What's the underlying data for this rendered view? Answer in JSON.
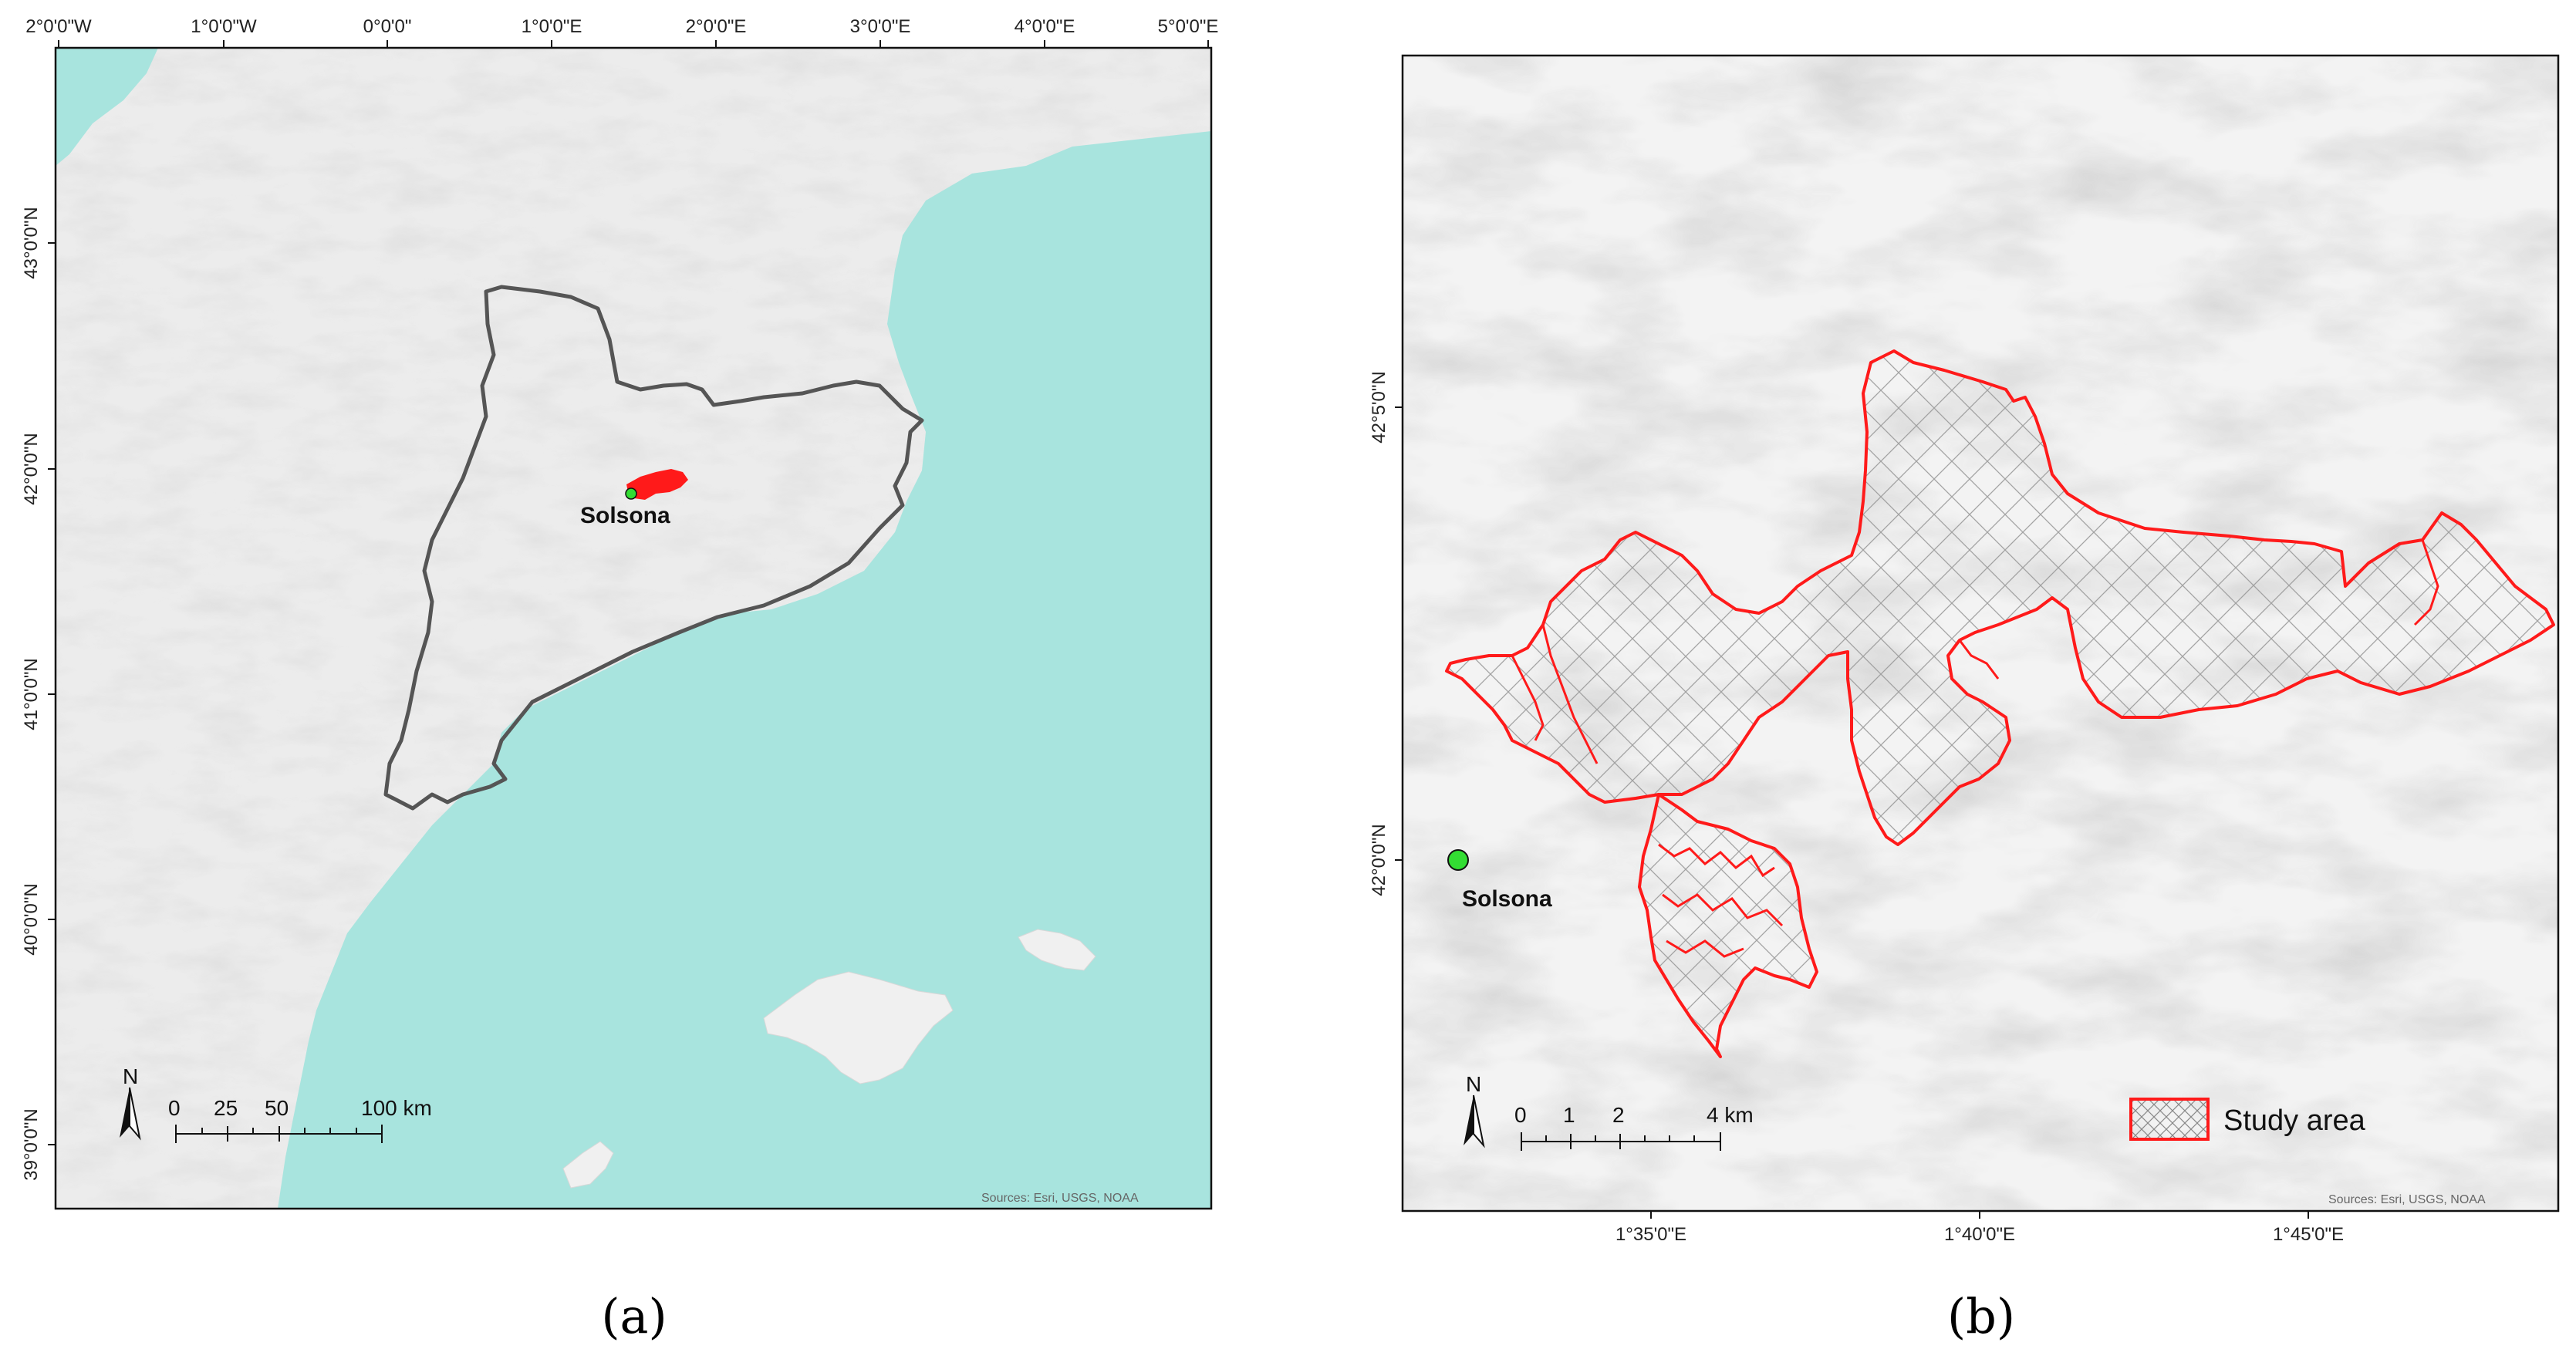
{
  "panel_a": {
    "top_ticks": [
      "2°0'0\"W",
      "1°0'0\"W",
      "0°0'0\"",
      "1°0'0\"E",
      "2°0'0\"E",
      "3°0'0\"E",
      "4°0'0\"E",
      "5°0'0\"E"
    ],
    "left_ticks": [
      "43°0'0\"N",
      "42°0'0\"N",
      "41°0'0\"N",
      "40°0'0\"N",
      "39°0'0\"N"
    ],
    "city_label": "Solsona",
    "north_label": "N",
    "scale_labels": [
      "0",
      "25",
      "50",
      "100 km"
    ],
    "sources": "Sources: Esri, USGS, NOAA",
    "caption": "(a)",
    "colors": {
      "sea": "#a8e4de",
      "land": "#ececec",
      "region_outline": "#555555",
      "study_area": "#ff1a1a",
      "city_marker": "#33dd33"
    }
  },
  "panel_b": {
    "left_ticks": [
      "42°5'0\"N",
      "42°0'0\"N"
    ],
    "bottom_ticks": [
      "1°35'0\"E",
      "1°40'0\"E",
      "1°45'0\"E"
    ],
    "city_label": "Solsona",
    "north_label": "N",
    "scale_labels": [
      "0",
      "1",
      "2",
      "4 km"
    ],
    "legend_label": "Study area",
    "sources": "Sources: Esri, USGS, NOAA",
    "caption": "(b)",
    "colors": {
      "boundary": "#ff1a1a",
      "hatch": "#999999",
      "city_marker": "#33dd33",
      "relief": "#d2d2d2"
    }
  }
}
